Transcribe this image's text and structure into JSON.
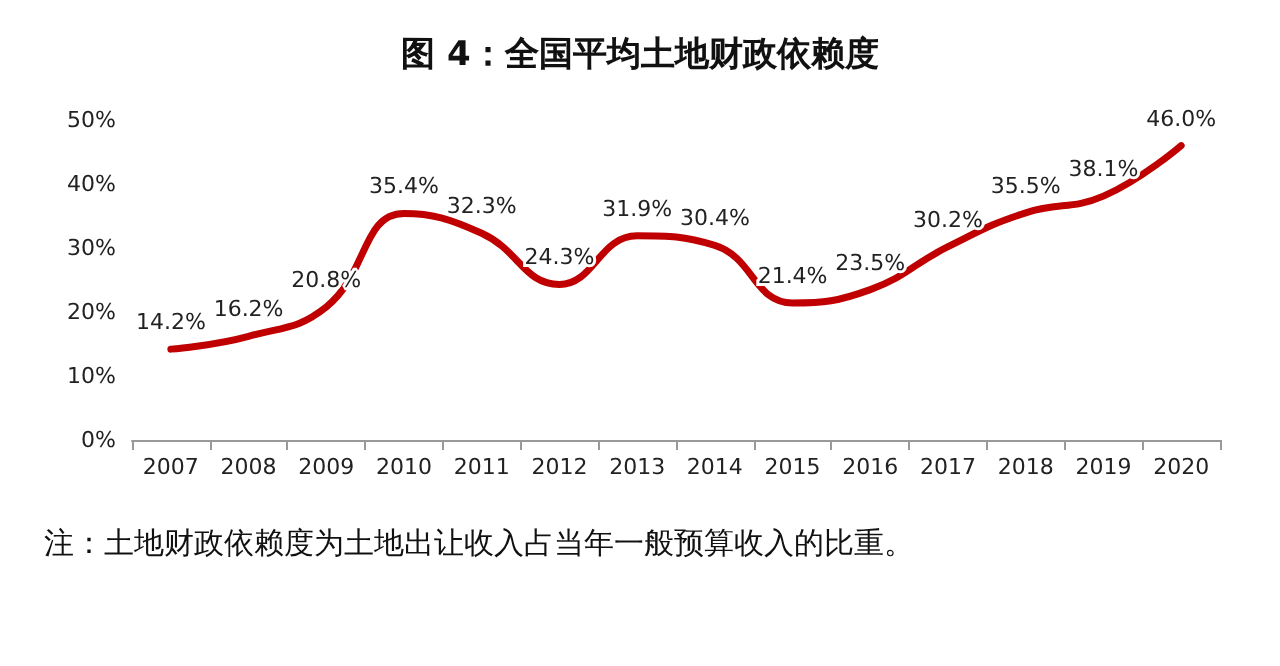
{
  "chart_data": {
    "type": "line",
    "title": "图 4：全国平均土地财政依赖度",
    "categories": [
      "2007",
      "2008",
      "2009",
      "2010",
      "2011",
      "2012",
      "2013",
      "2014",
      "2015",
      "2016",
      "2017",
      "2018",
      "2019",
      "2020"
    ],
    "series": [
      {
        "color": "#c00000",
        "values": [
          14.2,
          16.2,
          20.8,
          35.4,
          32.3,
          24.3,
          31.9,
          30.4,
          21.4,
          23.5,
          30.2,
          35.5,
          38.1,
          46.0
        ],
        "value_labels": [
          "14.2%",
          "16.2%",
          "20.8%",
          "35.4%",
          "32.3%",
          "24.3%",
          "31.9%",
          "30.4%",
          "21.4%",
          "23.5%",
          "30.2%",
          "35.5%",
          "38.1%",
          "46.0%"
        ]
      }
    ],
    "ylim": [
      0,
      50
    ],
    "yticks": [
      {
        "value": 0,
        "label": "0%"
      },
      {
        "value": 10,
        "label": "10%"
      },
      {
        "value": 20,
        "label": "20%"
      },
      {
        "value": 30,
        "label": "30%"
      },
      {
        "value": 40,
        "label": "40%"
      },
      {
        "value": 50,
        "label": "50%"
      }
    ],
    "grid": false,
    "marker": "none",
    "line_style": "solid",
    "annotations": [
      "注：土地财政依赖度为土地出让收入占当年一般预算收入的比重。"
    ]
  }
}
